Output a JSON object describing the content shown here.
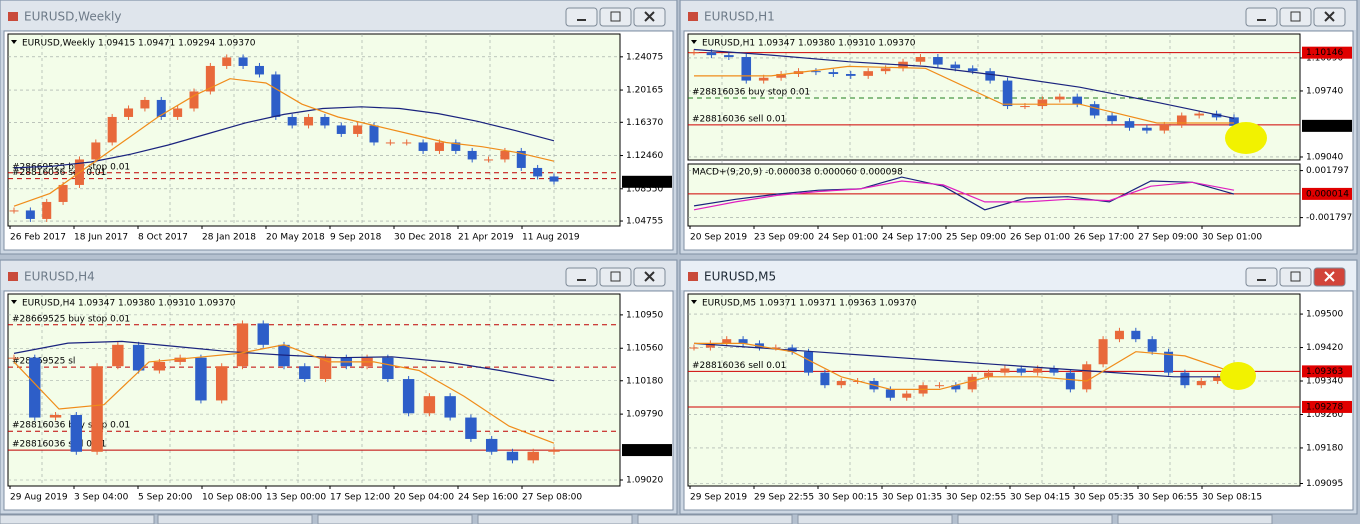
{
  "windows": [
    {
      "title": "EURUSD,Weekly",
      "info": "EURUSD,Weekly  1.09415 1.09471 1.09294 1.09370",
      "ylim": [
        1.0417,
        1.2676
      ],
      "yticks": [
        {
          "value": 1.24075,
          "label": "1.24075"
        },
        {
          "value": 1.20165,
          "label": "1.20165"
        },
        {
          "value": 1.1637,
          "label": "1.16370"
        },
        {
          "value": 1.1246,
          "label": "1.12460"
        },
        {
          "value": 1.0855,
          "label": "1.08550"
        },
        {
          "value": 1.04755,
          "label": "1.04755"
        }
      ],
      "xlabels": [
        "26 Feb 2017",
        "18 Jun 2017",
        "8 Oct 2017",
        "28 Jan 2018",
        "20 May 2018",
        "9 Sep 2018",
        "30 Dec 2018",
        "21 Apr 2019",
        "11 Aug 2019"
      ],
      "price": [
        1.06,
        1.05,
        1.07,
        1.09,
        1.12,
        1.14,
        1.17,
        1.18,
        1.19,
        1.17,
        1.18,
        1.2,
        1.23,
        1.24,
        1.23,
        1.22,
        1.17,
        1.16,
        1.17,
        1.16,
        1.15,
        1.16,
        1.14,
        1.14,
        1.14,
        1.13,
        1.14,
        1.13,
        1.12,
        1.12,
        1.13,
        1.11,
        1.1,
        1.094
      ],
      "ma_fast": [
        1.065,
        1.08,
        1.11,
        1.14,
        1.17,
        1.195,
        1.215,
        1.21,
        1.185,
        1.17,
        1.16,
        1.15,
        1.14,
        1.135,
        1.128,
        1.118
      ],
      "ma_slow": [
        1.11,
        1.112,
        1.117,
        1.126,
        1.137,
        1.15,
        1.163,
        1.173,
        1.18,
        1.182,
        1.18,
        1.174,
        1.165,
        1.154,
        1.142
      ],
      "levels": [
        {
          "value": 1.1043,
          "text": "#28669525 buy stop 0.01",
          "color": "#c00000",
          "dash": true
        },
        {
          "value": 1.0975,
          "text": "#28816036 sell 0.01",
          "color": "#c00000",
          "dash": true
        }
      ],
      "current": {
        "value": 1.0937,
        "label": "1.09370"
      }
    },
    {
      "title": "EURUSD,H1",
      "info": "EURUSD,H1  1.09347 1.09380 1.09310 1.09370",
      "ylim": [
        1.09008,
        1.10344
      ],
      "yticks": [
        {
          "value": 1.1009,
          "label": "1.10090"
        },
        {
          "value": 1.0974,
          "label": "1.09740"
        },
        {
          "value": 1.0904,
          "label": "1.09040"
        }
      ],
      "xlabels": [
        "20 Sep 2019",
        "23 Sep 09:00",
        "24 Sep 01:00",
        "24 Sep 17:00",
        "25 Sep 09:00",
        "26 Sep 01:00",
        "26 Sep 17:00",
        "27 Sep 09:00",
        "30 Sep 01:00"
      ],
      "price": [
        1.1015,
        1.1012,
        1.101,
        1.0985,
        1.0988,
        1.0992,
        1.0995,
        1.0994,
        1.0992,
        1.099,
        1.0995,
        1.0998,
        1.1005,
        1.101,
        1.1002,
        1.0998,
        1.0995,
        1.0985,
        1.0958,
        1.0958,
        1.0965,
        1.0968,
        1.096,
        1.0948,
        1.0942,
        1.0935,
        1.0932,
        1.0938,
        1.0948,
        1.095,
        1.0946,
        1.0937
      ],
      "ma_fast": [
        1.099,
        1.099,
        1.1,
        1.0998,
        1.096,
        1.096,
        1.094,
        1.094
      ],
      "ma_slow": [
        1.1018,
        1.1012,
        1.1005,
        1.1,
        1.099,
        1.0978,
        1.0962,
        1.0945
      ],
      "levels": [
        {
          "value": 1.10146,
          "color": "#d00000",
          "dash": false
        },
        {
          "value": 1.09666,
          "text": "#28816036 buy stop 0.01",
          "color": "#208020",
          "dash": true
        },
        {
          "value": 1.0938,
          "text": "#28816036 sell 0.01",
          "color": "#d00000",
          "dash": false
        }
      ],
      "price_boxes": [
        {
          "value": 1.10146,
          "label": "1.10146"
        }
      ],
      "current": {
        "value": 1.0937,
        "label": "1.09370"
      },
      "indicator": {
        "info": "MACD+(9,20,9) -0.000038 0.000060 0.000098",
        "ylim": [
          -0.00244,
          0.0023
        ],
        "yticks": [
          {
            "value": 0.001797,
            "label": "0.001797"
          },
          {
            "value": -0.001797,
            "label": "-0.001797"
          }
        ],
        "main": [
          -0.0009,
          -0.0004,
          0.0,
          0.0003,
          0.0004,
          0.0013,
          0.0006,
          -0.0012,
          -0.0003,
          -0.0002,
          -0.0006,
          0.001,
          0.0009,
          0.0
        ],
        "signal": [
          -0.0012,
          -0.0006,
          -0.0001,
          0.0002,
          0.0004,
          0.001,
          0.0007,
          -0.0006,
          -0.0006,
          -0.0004,
          -0.0005,
          0.0006,
          0.0009,
          0.0003
        ],
        "level": {
          "value": 1.4e-05,
          "label": "0.000014"
        }
      }
    },
    {
      "title": "EURUSD,H4",
      "info": "EURUSD,H4  1.09347 1.09380 1.09310 1.09370",
      "ylim": [
        1.0895,
        1.11194
      ],
      "yticks": [
        {
          "value": 1.1095,
          "label": "1.10950"
        },
        {
          "value": 1.1056,
          "label": "1.10560"
        },
        {
          "value": 1.1018,
          "label": "1.10180"
        },
        {
          "value": 1.0979,
          "label": "1.09790"
        },
        {
          "value": 1.0902,
          "label": "1.09020"
        }
      ],
      "xlabels": [
        "29 Aug 2019",
        "3 Sep 04:00",
        "5 Sep 20:00",
        "10 Sep 08:00",
        "13 Sep 00:00",
        "17 Sep 12:00",
        "20 Sep 04:00",
        "24 Sep 16:00",
        "27 Sep 08:00"
      ],
      "price": [
        1.1045,
        1.0975,
        1.0978,
        1.0935,
        1.1035,
        1.106,
        1.103,
        1.104,
        1.1045,
        1.0995,
        1.1035,
        1.1085,
        1.106,
        1.1035,
        1.102,
        1.1045,
        1.1035,
        1.1045,
        1.102,
        1.098,
        1.1,
        1.0975,
        1.095,
        1.0935,
        1.0925,
        1.0935,
        1.0937
      ],
      "ma_fast": [
        1.104,
        1.0985,
        1.099,
        1.104,
        1.1045,
        1.105,
        1.106,
        1.104,
        1.104,
        1.103,
        1.1,
        1.0965,
        1.0945
      ],
      "ma_slow": [
        1.105,
        1.1062,
        1.1064,
        1.1058,
        1.1052,
        1.1048,
        1.1045,
        1.1046,
        1.104,
        1.103,
        1.1018
      ],
      "levels": [
        {
          "value": 1.10834,
          "text": "#28669525 buy stop 0.01",
          "color": "#c00000",
          "dash": true
        },
        {
          "value": 1.1034,
          "text": "#28669525 sl",
          "color": "#c00000",
          "dash": true
        },
        {
          "value": 1.0959,
          "text": "#28816036 buy stop 0.01",
          "color": "#c00000",
          "dash": true
        },
        {
          "value": 1.0937,
          "text": "#28816036 sell 0.01",
          "color": "#c00000",
          "dash": false
        }
      ],
      "current": {
        "value": 1.0937,
        "label": "1.09370"
      }
    },
    {
      "title": "EURUSD,M5",
      "info": "EURUSD,M5  1.09371 1.09371 1.09363 1.09370",
      "active": true,
      "ylim": [
        1.09089,
        1.09548
      ],
      "yticks": [
        {
          "value": 1.095,
          "label": "1.09500"
        },
        {
          "value": 1.0942,
          "label": "1.09420"
        },
        {
          "value": 1.0934,
          "label": "1.09340"
        },
        {
          "value": 1.0926,
          "label": "1.09260"
        },
        {
          "value": 1.0918,
          "label": "1.09180"
        },
        {
          "value": 1.09095,
          "label": "1.09095"
        }
      ],
      "xlabels": [
        "29 Sep 2019",
        "29 Sep 22:55",
        "30 Sep 00:15",
        "30 Sep 01:35",
        "30 Sep 02:55",
        "30 Sep 04:15",
        "30 Sep 05:35",
        "30 Sep 06:55",
        "30 Sep 08:15"
      ],
      "price": [
        1.0942,
        1.0943,
        1.0944,
        1.0943,
        1.0942,
        1.0942,
        1.0941,
        1.0936,
        1.0933,
        1.0934,
        1.0934,
        1.0932,
        1.093,
        1.0931,
        1.0933,
        1.0933,
        1.0932,
        1.0935,
        1.0936,
        1.0937,
        1.0936,
        1.0937,
        1.0936,
        1.0932,
        1.0938,
        1.0944,
        1.0946,
        1.0944,
        1.0941,
        1.0936,
        1.0933,
        1.0934,
        1.0935,
        1.0937
      ],
      "ma_fast": [
        1.0943,
        1.0943,
        1.0941,
        1.0935,
        1.0932,
        1.0932,
        1.0935,
        1.0935,
        1.0934,
        1.0941,
        1.094,
        1.0936
      ],
      "ma_slow": [
        1.0943,
        1.0942,
        1.0941,
        1.094,
        1.0939,
        1.0938,
        1.0937,
        1.0936,
        1.0935,
        1.0935
      ],
      "levels": [
        {
          "value": 1.09363,
          "text": "#28816036 sell 0.01",
          "color": "#d00000",
          "dash": false
        },
        {
          "value": 1.09278,
          "color": "#d00000",
          "dash": false
        }
      ],
      "price_boxes": [
        {
          "value": 1.09363,
          "label": "1.09363"
        },
        {
          "value": 1.09278,
          "label": "1.09278"
        }
      ]
    }
  ]
}
